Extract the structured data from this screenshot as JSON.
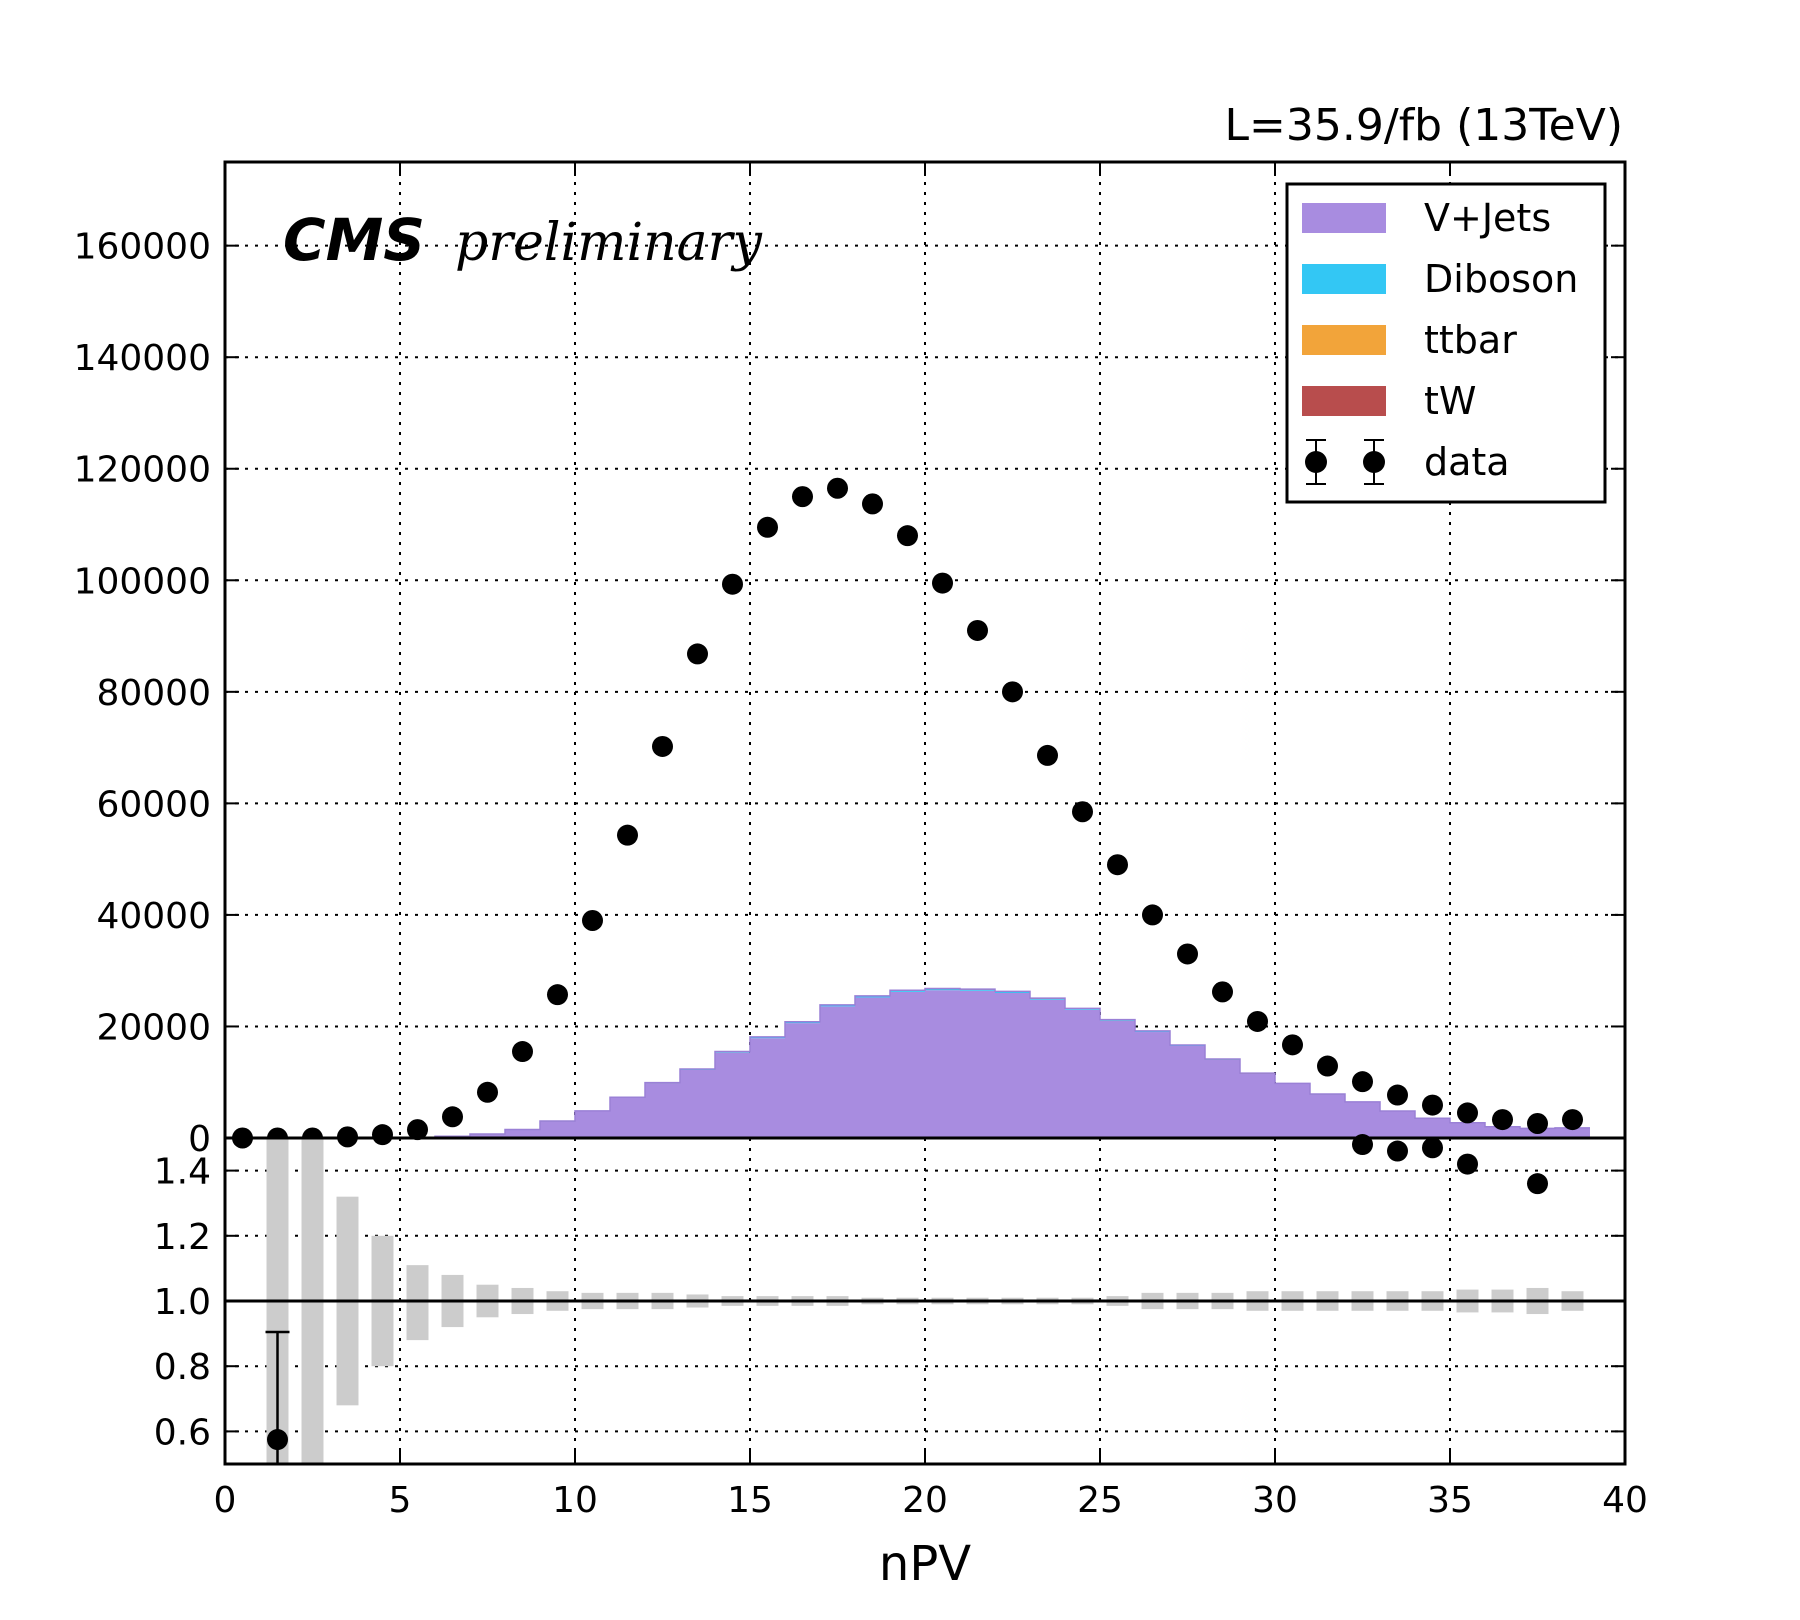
{
  "header": {
    "lumi": "L=35.9/fb (13TeV)",
    "experiment": "CMS",
    "status": "preliminary"
  },
  "chart_data": [
    {
      "type": "bar",
      "panel": "main",
      "stacked": true,
      "x_edges": [
        0,
        1,
        2,
        3,
        4,
        5,
        6,
        7,
        8,
        9,
        10,
        11,
        12,
        13,
        14,
        15,
        16,
        17,
        18,
        19,
        20,
        21,
        22,
        23,
        24,
        25,
        26,
        27,
        28,
        29,
        30,
        31,
        32,
        33,
        34,
        35,
        36,
        37,
        38,
        39
      ],
      "x_centers": [
        0.5,
        1.5,
        2.5,
        3.5,
        4.5,
        5.5,
        6.5,
        7.5,
        8.5,
        9.5,
        10.5,
        11.5,
        12.5,
        13.5,
        14.5,
        15.5,
        16.5,
        17.5,
        18.5,
        19.5,
        20.5,
        21.5,
        22.5,
        23.5,
        24.5,
        25.5,
        26.5,
        27.5,
        28.5,
        29.5,
        30.5,
        31.5,
        32.5,
        33.5,
        34.5,
        35.5,
        36.5,
        37.5,
        38.5
      ],
      "series": [
        {
          "name": "V+Jets",
          "kind": "stack",
          "color": "#a88ce0",
          "values": [
            0,
            0,
            0,
            0,
            0,
            100,
            300,
            700,
            1500,
            3000,
            4800,
            7200,
            9800,
            12200,
            15300,
            17900,
            20600,
            23600,
            25200,
            26200,
            26500,
            26400,
            26000,
            24800,
            23000,
            21000,
            19000,
            16500,
            14000,
            11500,
            9700,
            7800,
            6400,
            4800,
            3500,
            2700,
            2000,
            1700,
            1800
          ]
        },
        {
          "name": "Diboson",
          "kind": "stack",
          "color": "#33c7f4",
          "values": [
            0,
            0,
            0,
            0,
            0,
            2,
            5,
            10,
            20,
            40,
            60,
            90,
            120,
            150,
            180,
            200,
            220,
            240,
            250,
            260,
            260,
            255,
            250,
            240,
            220,
            200,
            180,
            160,
            135,
            110,
            90,
            75,
            60,
            45,
            35,
            25,
            20,
            15,
            15
          ]
        },
        {
          "name": "ttbar",
          "kind": "stack",
          "color": "#f2a43a",
          "values": [
            0,
            0,
            0,
            0,
            0,
            0,
            1,
            2,
            3,
            5,
            8,
            10,
            14,
            17,
            20,
            23,
            25,
            27,
            28,
            28,
            28,
            27,
            26,
            25,
            23,
            21,
            19,
            17,
            14,
            12,
            10,
            8,
            6,
            5,
            4,
            3,
            2,
            2,
            2
          ]
        },
        {
          "name": "tW",
          "kind": "stack",
          "color": "#b84d4d",
          "values": [
            0,
            0,
            0,
            0,
            0,
            0,
            0,
            1,
            1,
            2,
            3,
            4,
            5,
            6,
            7,
            8,
            9,
            9,
            10,
            10,
            10,
            10,
            9,
            9,
            8,
            7,
            7,
            6,
            5,
            4,
            4,
            3,
            2,
            2,
            2,
            1,
            1,
            1,
            1
          ]
        },
        {
          "name": "data",
          "kind": "points",
          "color": "#000000",
          "values": [
            0,
            0,
            0,
            200,
            600,
            1500,
            3800,
            8200,
            15500,
            25700,
            39000,
            54300,
            70200,
            86800,
            99300,
            109500,
            115000,
            116500,
            113700,
            108000,
            99500,
            91000,
            80000,
            68600,
            58500,
            49000,
            40000,
            33000,
            26200,
            20900,
            16700,
            12900,
            10100,
            7700,
            5900,
            4500,
            3300,
            2600,
            3300
          ]
        }
      ],
      "xlim": [
        0,
        40
      ],
      "ylim": [
        0,
        175000
      ],
      "yticks": [
        0,
        20000,
        40000,
        60000,
        80000,
        100000,
        120000,
        140000,
        160000
      ],
      "ytick_labels": [
        "0",
        "20000",
        "40000",
        "60000",
        "80000",
        "100000",
        "120000",
        "140000",
        "160000"
      ],
      "grid": true,
      "legend_position": "top-right"
    },
    {
      "type": "scatter",
      "panel": "ratio",
      "x_centers": [
        1.5,
        32.5,
        33.5,
        34.5,
        35.5,
        37.5
      ],
      "values": [
        0.575,
        1.48,
        1.46,
        1.47,
        1.42,
        1.36
      ],
      "errors": [
        0.33,
        0.01,
        0.01,
        0.01,
        0.01,
        0.02
      ],
      "band_x": [
        1.5,
        2.5,
        3.5,
        4.5,
        5.5,
        6.5,
        7.5,
        8.5,
        9.5,
        10.5,
        11.5,
        12.5,
        13.5,
        14.5,
        15.5,
        16.5,
        17.5,
        18.5,
        19.5,
        20.5,
        21.5,
        22.5,
        23.5,
        24.5,
        25.5,
        26.5,
        27.5,
        28.5,
        29.5,
        30.5,
        31.5,
        32.5,
        33.5,
        34.5,
        35.5,
        36.5,
        37.5,
        38.5
      ],
      "band_lo": [
        0.5,
        0.5,
        0.68,
        0.8,
        0.88,
        0.92,
        0.95,
        0.96,
        0.97,
        0.975,
        0.975,
        0.975,
        0.98,
        0.985,
        0.985,
        0.985,
        0.985,
        0.99,
        0.99,
        0.99,
        0.99,
        0.99,
        0.99,
        0.99,
        0.985,
        0.975,
        0.975,
        0.975,
        0.97,
        0.97,
        0.97,
        0.97,
        0.97,
        0.97,
        0.965,
        0.965,
        0.96,
        0.97
      ],
      "band_hi": [
        1.5,
        1.5,
        1.32,
        1.2,
        1.11,
        1.08,
        1.05,
        1.04,
        1.03,
        1.025,
        1.025,
        1.025,
        1.02,
        1.015,
        1.015,
        1.015,
        1.015,
        1.01,
        1.01,
        1.01,
        1.01,
        1.01,
        1.01,
        1.01,
        1.015,
        1.025,
        1.025,
        1.025,
        1.03,
        1.03,
        1.03,
        1.03,
        1.03,
        1.03,
        1.035,
        1.035,
        1.04,
        1.03
      ],
      "band_color": "#cccccc",
      "reference_line": 1.0,
      "xlim": [
        0,
        40
      ],
      "ylim": [
        0.5,
        1.5
      ],
      "yticks": [
        0.6,
        0.8,
        1.0,
        1.2,
        1.4
      ],
      "ytick_labels": [
        "0.6",
        "0.8",
        "1.0",
        "1.2",
        "1.4"
      ],
      "xticks": [
        0,
        5,
        10,
        15,
        20,
        25,
        30,
        35,
        40
      ],
      "xtick_labels": [
        "0",
        "5",
        "10",
        "15",
        "20",
        "25",
        "30",
        "35",
        "40"
      ],
      "xlabel": "nPV",
      "grid": true
    }
  ]
}
